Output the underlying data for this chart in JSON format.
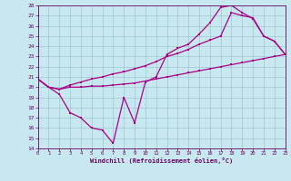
{
  "xlabel": "Windchill (Refroidissement éolien,°C)",
  "xlim": [
    0,
    23
  ],
  "ylim": [
    14,
    28
  ],
  "xticks": [
    0,
    1,
    2,
    3,
    4,
    5,
    6,
    7,
    8,
    9,
    10,
    11,
    12,
    13,
    14,
    15,
    16,
    17,
    18,
    19,
    20,
    21,
    22,
    23
  ],
  "yticks": [
    14,
    15,
    16,
    17,
    18,
    19,
    20,
    21,
    22,
    23,
    24,
    25,
    26,
    27,
    28
  ],
  "bg_color": "#c8e8f0",
  "line_color": "#aa0088",
  "grid_color": "#99bbcc",
  "series": [
    {
      "x": [
        0,
        1,
        2,
        3,
        4,
        5,
        6,
        7,
        8,
        9,
        10,
        11,
        12,
        13,
        14,
        15,
        16,
        17,
        18,
        19,
        20,
        21,
        22,
        23
      ],
      "y": [
        20.8,
        20.0,
        19.3,
        17.5,
        17.0,
        16.0,
        15.8,
        14.5,
        19.0,
        16.5,
        20.5,
        21.0,
        23.2,
        23.8,
        24.2,
        25.2,
        26.3,
        27.8,
        28.0,
        27.3,
        26.7,
        25.0,
        24.5,
        23.2
      ]
    },
    {
      "x": [
        0,
        1,
        2,
        3,
        4,
        5,
        6,
        7,
        8,
        9,
        10,
        11,
        12,
        13,
        14,
        15,
        16,
        17,
        18,
        19,
        20,
        21,
        22,
        23
      ],
      "y": [
        20.8,
        20.0,
        19.8,
        20.2,
        20.5,
        20.8,
        21.0,
        21.3,
        21.5,
        21.8,
        22.1,
        22.5,
        23.0,
        23.3,
        23.7,
        24.2,
        24.6,
        25.0,
        27.3,
        27.0,
        26.8,
        25.0,
        24.5,
        23.2
      ]
    },
    {
      "x": [
        0,
        1,
        2,
        3,
        4,
        5,
        6,
        7,
        8,
        9,
        10,
        11,
        12,
        13,
        14,
        15,
        16,
        17,
        18,
        19,
        20,
        21,
        22,
        23
      ],
      "y": [
        20.8,
        20.0,
        19.8,
        20.0,
        20.0,
        20.1,
        20.1,
        20.2,
        20.3,
        20.4,
        20.6,
        20.8,
        21.0,
        21.2,
        21.4,
        21.6,
        21.8,
        22.0,
        22.2,
        22.4,
        22.6,
        22.8,
        23.0,
        23.2
      ]
    }
  ]
}
